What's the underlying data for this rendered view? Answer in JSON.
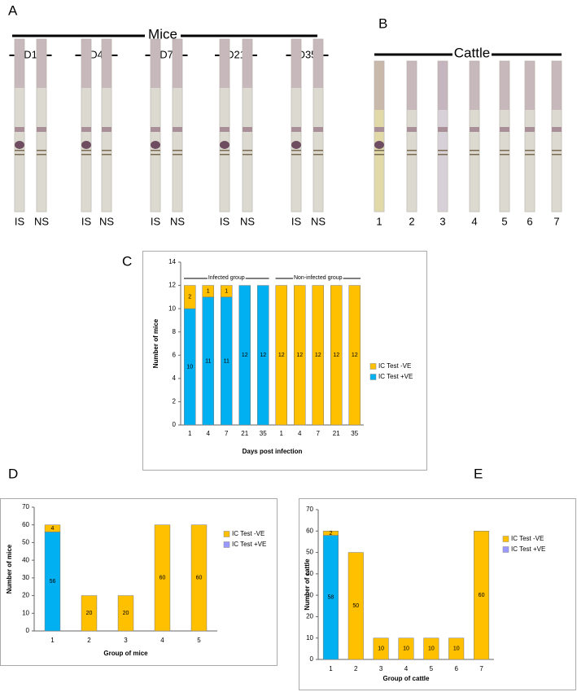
{
  "panel_a": {
    "label": "A",
    "title": "Mice",
    "days": [
      "D1",
      "D4",
      "D7",
      "D21",
      "D35"
    ],
    "strip_labels": [
      "IS",
      "NS",
      "IS",
      "NS",
      "IS",
      "NS",
      "IS",
      "NS",
      "IS",
      "NS"
    ]
  },
  "panel_b": {
    "label": "B",
    "title": "Cattle",
    "strip_labels": [
      "1",
      "2",
      "3",
      "4",
      "5",
      "6",
      "7"
    ]
  },
  "chart_data": [
    {
      "type": "bar",
      "panel": "C",
      "stacked": true,
      "y_label": "Number of mice",
      "x_label": "Days post infection",
      "annotations": [
        "Infected group",
        "Non-infected group"
      ],
      "categories": [
        "1",
        "4",
        "7",
        "21",
        "35",
        "1",
        "4",
        "7",
        "21",
        "35"
      ],
      "series": [
        {
          "name": "IC Test +VE",
          "color": "#00b0f0",
          "values": [
            10,
            11,
            11,
            12,
            12,
            null,
            null,
            null,
            null,
            null
          ]
        },
        {
          "name": "IC Test -VE",
          "color": "#ffc000",
          "values": [
            2,
            1,
            1,
            null,
            null,
            12,
            12,
            12,
            12,
            12
          ]
        }
      ],
      "ylim": [
        0,
        14
      ],
      "yticks": [
        0,
        2,
        4,
        6,
        8,
        10,
        12,
        14
      ]
    },
    {
      "type": "bar",
      "panel": "D",
      "stacked": true,
      "y_label": "Number of mice",
      "x_label": "Group of mice",
      "categories": [
        "1",
        "2",
        "3",
        "4",
        "5"
      ],
      "series": [
        {
          "name": "IC Test +VE",
          "color": "#00b0f0",
          "legend_color": "#9999ff",
          "values": [
            56,
            null,
            null,
            null,
            null
          ]
        },
        {
          "name": "IC Test -VE",
          "color": "#ffc000",
          "values": [
            4,
            20,
            20,
            60,
            60
          ]
        }
      ],
      "ylim": [
        0,
        70
      ],
      "yticks": [
        0,
        10,
        20,
        30,
        40,
        50,
        60,
        70
      ]
    },
    {
      "type": "bar",
      "panel": "E",
      "stacked": true,
      "y_label": "Number of cattle",
      "x_label": "Group of cattle",
      "categories": [
        "1",
        "2",
        "3",
        "4",
        "5",
        "6",
        "7"
      ],
      "series": [
        {
          "name": "IC Test +VE",
          "color": "#00b0f0",
          "legend_color": "#9999ff",
          "values": [
            58,
            null,
            null,
            null,
            null,
            null,
            null
          ]
        },
        {
          "name": "IC Test -VE",
          "color": "#ffc000",
          "values": [
            2,
            50,
            10,
            10,
            10,
            10,
            60
          ]
        }
      ],
      "ylim": [
        0,
        70
      ],
      "yticks": [
        0,
        10,
        20,
        30,
        40,
        50,
        60,
        70
      ]
    }
  ]
}
